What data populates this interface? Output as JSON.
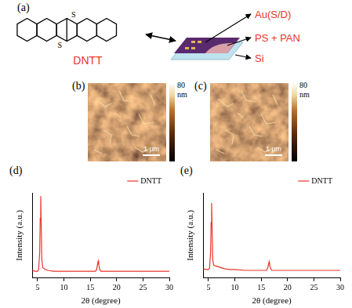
{
  "panels": {
    "a": {
      "label": "(a)",
      "molecule": "DNTT",
      "atom": "S",
      "layers": [
        "Au(S/D)",
        "PS + PAN",
        "Si"
      ]
    },
    "b": {
      "label": "(b)",
      "colorbar_max": 80,
      "colorbar_unit": "nm",
      "scale_bar": "1 μm"
    },
    "c": {
      "label": "(c)",
      "colorbar_max": 80,
      "colorbar_unit": "nm",
      "scale_bar": "1 μm"
    },
    "d": {
      "label": "(d)"
    },
    "e": {
      "label": "(e)"
    }
  },
  "chart_data": [
    {
      "type": "line",
      "x_label": "2θ (degree)",
      "y_label": "Intensity (a.u.)",
      "x": [
        4,
        4.5,
        5,
        5.2,
        5.4,
        5.5,
        5.6,
        5.7,
        5.8,
        6,
        6.5,
        7,
        8,
        9,
        10,
        12,
        14,
        15.5,
        16,
        16.2,
        16.4,
        16.5,
        16.6,
        16.8,
        17,
        18,
        20,
        22,
        24,
        26,
        28,
        30
      ],
      "series": [
        {
          "name": "DNTT",
          "color": "#e8352b",
          "values": [
            9,
            8,
            8,
            10,
            30,
            70,
            96,
            60,
            22,
            12,
            10,
            9,
            8,
            8,
            8,
            8,
            8,
            8,
            8,
            10,
            17,
            20,
            16,
            10,
            8,
            8,
            8,
            8,
            8,
            8,
            8,
            8
          ]
        }
      ],
      "xlim": [
        4,
        30
      ],
      "xticks": [
        5,
        10,
        15,
        20,
        25,
        30
      ],
      "ylim": [
        0,
        100
      ],
      "grid": false,
      "legend": "upper right",
      "tick_labels": "x"
    },
    {
      "type": "line",
      "x_label": "2θ (degree)",
      "y_label": "Intensity (a.u.)",
      "x": [
        4,
        4.5,
        5,
        5.2,
        5.4,
        5.5,
        5.6,
        5.7,
        5.8,
        6,
        6.5,
        7,
        8,
        9,
        10,
        12,
        14,
        15.5,
        16,
        16.2,
        16.4,
        16.5,
        16.6,
        16.8,
        17,
        18,
        20,
        22,
        24,
        26,
        28,
        30
      ],
      "series": [
        {
          "name": "DNTT",
          "color": "#e8352b",
          "values": [
            11,
            10,
            10,
            12,
            30,
            65,
            88,
            55,
            22,
            15,
            14,
            13,
            11,
            10,
            10,
            9,
            9,
            9,
            9,
            11,
            16,
            19,
            15,
            11,
            9,
            9,
            9,
            9,
            9,
            9,
            9,
            9
          ]
        }
      ],
      "xlim": [
        4,
        30
      ],
      "xticks": [
        5,
        10,
        15,
        20,
        25,
        30
      ],
      "ylim": [
        0,
        100
      ],
      "grid": false,
      "legend": "upper right",
      "tick_labels": "x"
    }
  ]
}
